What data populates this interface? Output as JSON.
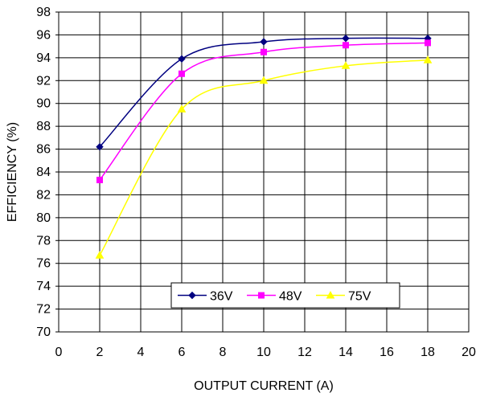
{
  "chart_data": {
    "type": "line",
    "title": "",
    "xlabel": "OUTPUT CURRENT (A)",
    "ylabel": "EFFICIENCY (%)",
    "xlim": [
      0,
      20
    ],
    "ylim": [
      70,
      98
    ],
    "x_ticks": [
      0,
      2,
      4,
      6,
      8,
      10,
      12,
      14,
      16,
      18,
      20
    ],
    "y_ticks": [
      70,
      72,
      74,
      76,
      78,
      80,
      82,
      84,
      86,
      88,
      90,
      92,
      94,
      96,
      98
    ],
    "grid": true,
    "legend_position": "lower-right",
    "x": [
      2,
      6,
      10,
      14,
      18
    ],
    "series": [
      {
        "name": "36V",
        "color": "#000080",
        "marker": "diamond",
        "values": [
          86.2,
          93.9,
          95.4,
          95.7,
          95.7
        ]
      },
      {
        "name": "48V",
        "color": "#ff00ff",
        "marker": "square",
        "values": [
          83.3,
          92.6,
          94.5,
          95.1,
          95.3
        ]
      },
      {
        "name": "75V",
        "color": "#ffff00",
        "marker": "triangle",
        "values": [
          76.7,
          89.5,
          92.0,
          93.3,
          93.8
        ]
      }
    ]
  }
}
